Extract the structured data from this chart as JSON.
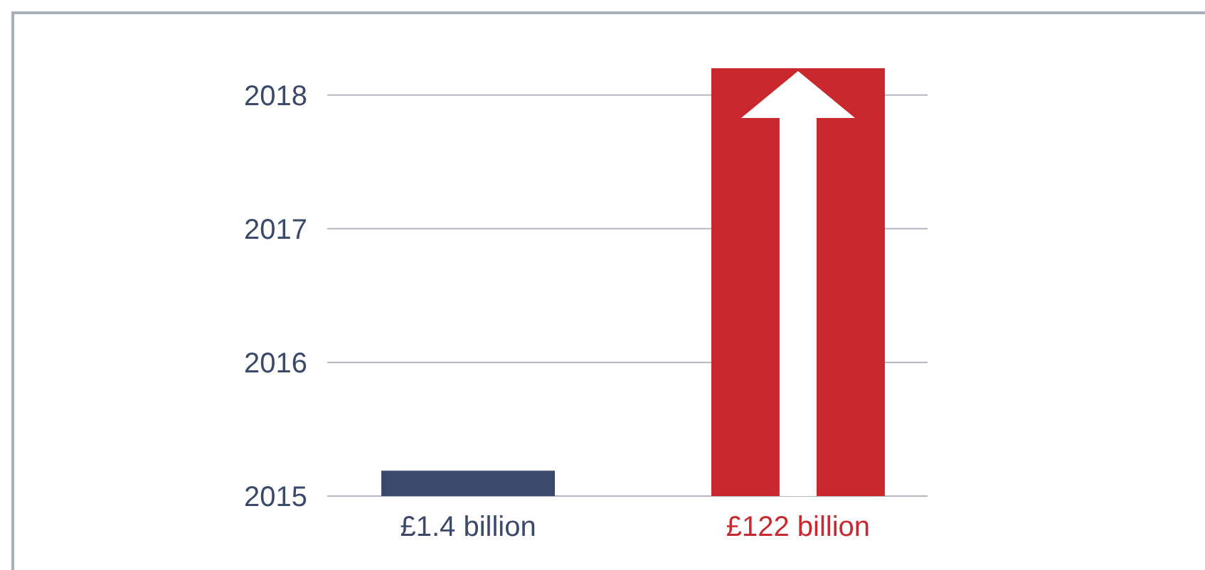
{
  "chart_data": {
    "type": "bar",
    "categories": [
      "£1.4 billion",
      "£122 billion"
    ],
    "colors": [
      "#3b4a6b",
      "#c8282e"
    ],
    "values": [
      2015.19,
      2018.2
    ],
    "ylim": [
      2015,
      2018.2
    ],
    "yticks": [
      2015,
      2016,
      2017,
      2018
    ],
    "grid": "y"
  }
}
